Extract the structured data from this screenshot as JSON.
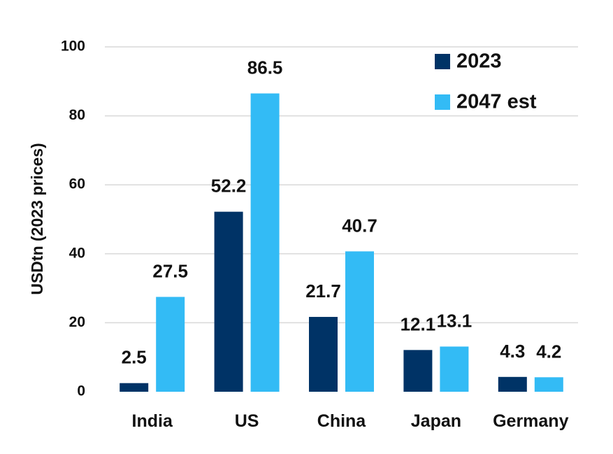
{
  "chart_data": {
    "type": "bar",
    "title": "",
    "xlabel": "",
    "ylabel": "USDtn (2023 prices)",
    "ylim": [
      0,
      100
    ],
    "yticks": [
      "0",
      "20",
      "40",
      "60",
      "80",
      "100"
    ],
    "grid": true,
    "legend_position": "top-right",
    "categories": [
      "India",
      "US",
      "China",
      "Japan",
      "Germany"
    ],
    "series": [
      {
        "name": "2023",
        "color": "#003366",
        "values": [
          2.5,
          52.2,
          21.7,
          12.1,
          4.3
        ],
        "labels": [
          "2.5",
          "52.2",
          "21.7",
          "12.1",
          "4.3"
        ]
      },
      {
        "name": "2047 est",
        "color": "#33bbf5",
        "values": [
          27.5,
          86.5,
          40.7,
          13.1,
          4.2
        ],
        "labels": [
          "27.5",
          "86.5",
          "40.7",
          "13.1",
          "4.2"
        ]
      }
    ]
  }
}
